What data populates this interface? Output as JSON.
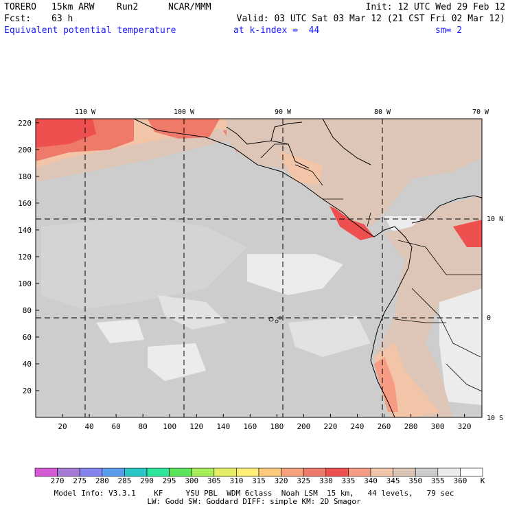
{
  "header": {
    "model": "TORERO",
    "resolution": "15km ARW",
    "run": "Run2",
    "org": "NCAR/MMM",
    "init": "Init: 12 UTC Wed 29 Feb 12",
    "fcst_label": "Fcst:",
    "fcst_value": "63 h",
    "valid": "Valid: 03 UTC Sat 03 Mar 12 (21 CST Fri 02 Mar 12)",
    "field": "Equivalent potential temperature",
    "level": "at k-index =  44",
    "smoothing": "sm= 2"
  },
  "map": {
    "x_ticks": [
      "20",
      "40",
      "60",
      "80",
      "100",
      "120",
      "140",
      "160",
      "180",
      "200",
      "220",
      "240",
      "260",
      "280",
      "300",
      "320"
    ],
    "y_ticks": [
      "220",
      "200",
      "180",
      "160",
      "140",
      "120",
      "100",
      "80",
      "60",
      "40",
      "20"
    ],
    "lon_labels": [
      "110 W",
      "100 W",
      "90 W",
      "80 W",
      "70 W"
    ],
    "lat_labels": [
      "10 N",
      "0",
      "10 S"
    ]
  },
  "colorbar": {
    "labels": [
      "270",
      "275",
      "280",
      "285",
      "290",
      "295",
      "300",
      "305",
      "310",
      "315",
      "320",
      "325",
      "330",
      "335",
      "340",
      "345",
      "350",
      "355",
      "360",
      "K"
    ],
    "colors": [
      "#d65ad6",
      "#a77ad6",
      "#8484ee",
      "#5a9cee",
      "#27c5c5",
      "#2ee59c",
      "#5ae55a",
      "#a7ee5a",
      "#e5ee66",
      "#fff07a",
      "#fcca7a",
      "#f6a27a",
      "#f07a6a",
      "#ee5050",
      "#f69c84",
      "#f2c4a8",
      "#ddc6b7",
      "#cdcdcd",
      "#ececec",
      "#ffffff"
    ]
  },
  "footer": {
    "line1": "Model Info: V3.3.1    KF     YSU PBL  WDM 6class  Noah LSM  15 km,   44 levels,   79 sec",
    "line2": "LW: Godd SW: Goddard DIFF: simple KM: 2D Smagor"
  }
}
